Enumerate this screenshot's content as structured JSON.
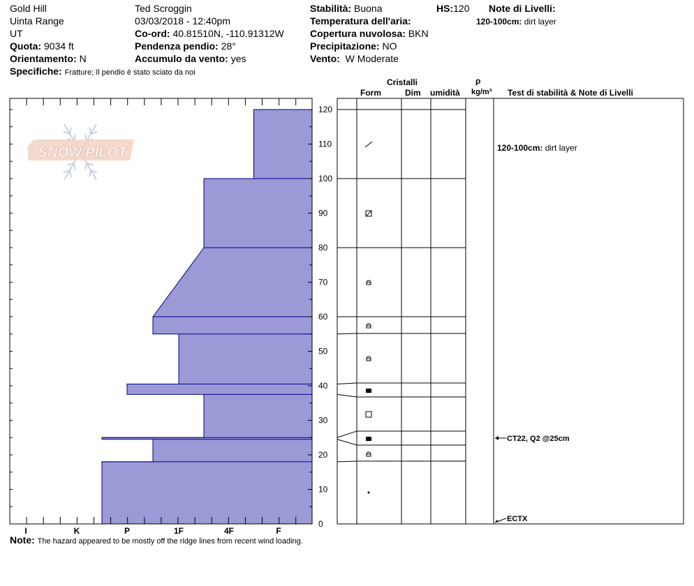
{
  "header": {
    "location": "Gold Hill",
    "range": "Uinta Range",
    "state": "UT",
    "elevation_label": "Quota:",
    "elevation_value": "9034 ft",
    "aspect_label": "Orientamento:",
    "aspect_value": "N",
    "specifics_label": "Specifiche:",
    "specifics_value": "Fratture;  Il pendio è stato sciato da noi",
    "observer": "Ted Scroggin",
    "datetime": "03/03/2018 - 12:40pm",
    "coords_label": "Co-ord:",
    "coords_value": "40.81510N, -110.91312W",
    "slope_label": "Pendenza pendio:",
    "slope_value": "28°",
    "wind_loading_label": "Accumulo da vento:",
    "wind_loading_value": "yes",
    "stability_label": "Stabilità:",
    "stability_value": "Buona",
    "air_temp_label": "Temperatura dell'aria:",
    "cloud_label": "Copertura nuvolosa:",
    "cloud_value": "BKN",
    "precip_label": "Precipitazione:",
    "precip_value": "NO",
    "wind_label": "Vento:",
    "wind_value": "W Moderate",
    "hs_label": "HS:",
    "hs_value": "120",
    "layer_notes_label": "Note di Livelli:",
    "layer_note_range": "120-100cm:",
    "layer_note_text": "dirt layer"
  },
  "columns": {
    "crystals": "Cristalli",
    "form": "Form",
    "size": "Dim",
    "moisture": "umidità",
    "rho": "ρ",
    "density_unit": "kg/m³",
    "stability_notes": "Test di stabilità & Note di Livelli"
  },
  "logo_text": "SNOW PILOT",
  "footer": {
    "note_label": "Note:",
    "note_text": "The hazard appeared to be mostly off the ridge lines from recent wind loading."
  },
  "colors": {
    "fill": "#9b99d6",
    "stroke": "#00008b"
  },
  "chart_data": {
    "type": "snow_profile",
    "hardness_scale": [
      "I",
      "K",
      "P",
      "1F",
      "4F",
      "F"
    ],
    "height_ticks": [
      0,
      10,
      20,
      30,
      40,
      50,
      60,
      70,
      80,
      90,
      100,
      110,
      120
    ],
    "ylim": [
      0,
      120
    ],
    "layers": [
      {
        "top": 120,
        "bottom": 100,
        "hardness_top": 0.5,
        "hardness_bottom": 0.5,
        "form": "/"
      },
      {
        "top": 100,
        "bottom": 80,
        "hardness_top": 1.5,
        "hardness_bottom": 1.5,
        "form": "facet-rounded"
      },
      {
        "top": 80,
        "bottom": 60,
        "hardness_top": 1.5,
        "hardness_bottom": 2.5,
        "form": "facet"
      },
      {
        "top": 60,
        "bottom": 55,
        "hardness_top": 2.5,
        "hardness_bottom": 2.5,
        "form": "facet"
      },
      {
        "top": 55,
        "bottom": 40.5,
        "hardness_top": 2.0,
        "hardness_bottom": 2.0,
        "form": "facet"
      },
      {
        "top": 40.5,
        "bottom": 37.5,
        "hardness_top": 3.0,
        "hardness_bottom": 3.0,
        "form": "melt-freeze"
      },
      {
        "top": 37.5,
        "bottom": 25,
        "hardness_top": 1.5,
        "hardness_bottom": 1.5,
        "form": "square"
      },
      {
        "top": 25,
        "bottom": 24.5,
        "hardness_top": 3.5,
        "hardness_bottom": 3.5,
        "form": "melt-freeze"
      },
      {
        "top": 24.5,
        "bottom": 18,
        "hardness_top": 2.5,
        "hardness_bottom": 2.5,
        "form": "facet"
      },
      {
        "top": 18,
        "bottom": 0,
        "hardness_top": 3.5,
        "hardness_bottom": 3.5,
        "form": "dot"
      }
    ],
    "tests": [
      {
        "height": 25,
        "label": "CT22, Q2 @25cm"
      },
      {
        "height": 0,
        "label": "ECTX"
      }
    ],
    "layer_notes": [
      {
        "height": 110,
        "range": "120-100cm:",
        "text": "dirt layer"
      }
    ]
  }
}
